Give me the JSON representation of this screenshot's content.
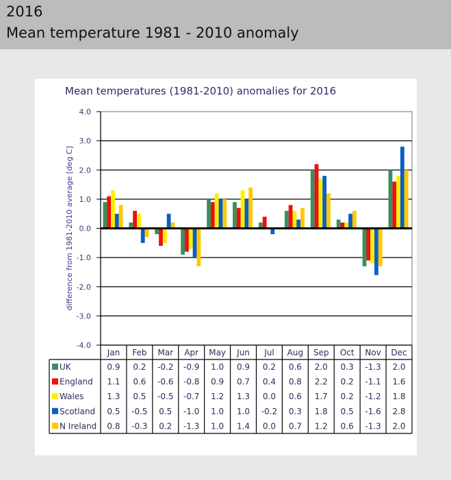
{
  "header": {
    "year": "2016",
    "title": "Mean temperature 1981 - 2010 anomaly"
  },
  "chart_data": {
    "type": "bar",
    "title": "Mean temperatures (1981-2010) anomalies for 2016",
    "xlabel": "",
    "ylabel": "difference from 1981-2010 average [deg C]",
    "ylim": [
      -4.0,
      4.0
    ],
    "yticks": [
      "4.0",
      "3.0",
      "2.0",
      "1.0",
      "0.0",
      "-1.0",
      "-2.0",
      "-3.0",
      "-4.0"
    ],
    "grid": true,
    "legend": "data-table-below",
    "categories": [
      "Jan",
      "Feb",
      "Mar",
      "Apr",
      "May",
      "Jun",
      "Jul",
      "Aug",
      "Sep",
      "Oct",
      "Nov",
      "Dec"
    ],
    "series": [
      {
        "name": "UK",
        "color": "#3a8f5e",
        "values": [
          0.9,
          0.2,
          -0.2,
          -0.9,
          1.0,
          0.9,
          0.2,
          0.6,
          2.0,
          0.3,
          -1.3,
          2.0
        ]
      },
      {
        "name": "England",
        "color": "#ee0f0f",
        "values": [
          1.1,
          0.6,
          -0.6,
          -0.8,
          0.9,
          0.7,
          0.4,
          0.8,
          2.2,
          0.2,
          -1.1,
          1.6
        ]
      },
      {
        "name": "Wales",
        "color": "#ffee00",
        "values": [
          1.3,
          0.5,
          -0.5,
          -0.7,
          1.2,
          1.3,
          0.0,
          0.6,
          1.7,
          0.2,
          -1.2,
          1.8
        ]
      },
      {
        "name": "Scotland",
        "color": "#0a5ec8",
        "values": [
          0.5,
          -0.5,
          0.5,
          -1.0,
          1.0,
          1.0,
          -0.2,
          0.3,
          1.8,
          0.5,
          -1.6,
          2.8
        ]
      },
      {
        "name": "N Ireland",
        "color": "#ffc800",
        "values": [
          0.8,
          -0.3,
          0.2,
          -1.3,
          1.0,
          1.4,
          0.0,
          0.7,
          1.2,
          0.6,
          -1.3,
          2.0
        ]
      }
    ],
    "bar_heights_approx": {
      "UK": [
        0.93,
        0.2,
        -0.2,
        -0.88,
        0.95,
        0.9,
        0.15,
        0.6,
        1.95,
        0.33,
        -1.3,
        2.02
      ],
      "England": [
        1.1,
        0.58,
        -0.57,
        -0.83,
        0.88,
        0.72,
        0.4,
        0.75,
        2.17,
        0.23,
        -1.14,
        1.6
      ],
      "Wales": [
        1.3,
        0.5,
        -0.53,
        -0.68,
        1.2,
        1.32,
        0.0,
        0.57,
        1.7,
        0.18,
        -1.22,
        1.75
      ],
      "Scotland": [
        0.45,
        -0.47,
        0.45,
        -0.98,
        1.0,
        0.95,
        -0.18,
        0.3,
        1.8,
        0.45,
        -1.57,
        2.83
      ],
      "N Ireland": [
        0.8,
        -0.3,
        0.17,
        -1.3,
        1.0,
        1.43,
        0.0,
        0.67,
        1.2,
        0.55,
        -1.33,
        1.95
      ]
    }
  }
}
